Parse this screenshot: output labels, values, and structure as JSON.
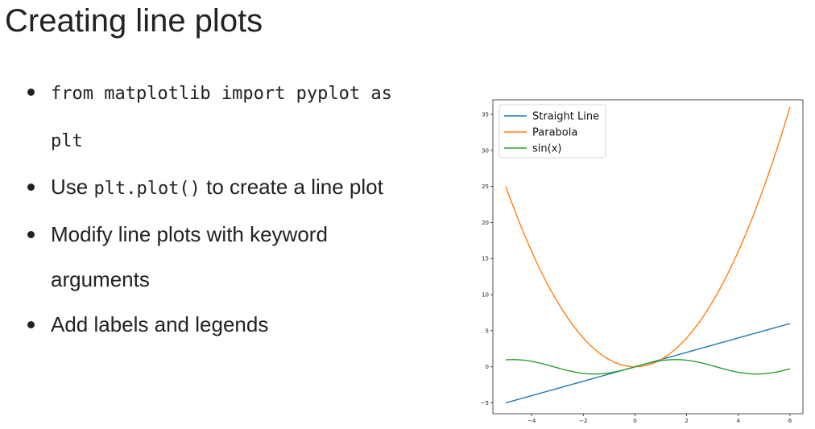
{
  "slide": {
    "title": "Creating line plots",
    "bullets": [
      {
        "code_text": "from matplotlib import pyplot as plt",
        "text": ""
      },
      {
        "prefix": "Use ",
        "code_text": "plt.plot()",
        "suffix": " to create a line plot"
      },
      {
        "text": "Modify line plots with keyword arguments"
      },
      {
        "text": "Add labels and legends"
      }
    ]
  },
  "chart_data": {
    "type": "line",
    "title": "",
    "xlabel": "",
    "ylabel": "",
    "xlim": [
      -5.5,
      6.5
    ],
    "ylim": [
      -6.5,
      37
    ],
    "x_ticks": [
      -4,
      -2,
      0,
      2,
      4,
      6
    ],
    "y_ticks": [
      -5,
      0,
      5,
      10,
      15,
      20,
      25,
      30,
      35
    ],
    "x_tick_labels": [
      "−4",
      "−2",
      "0",
      "2",
      "4",
      "6"
    ],
    "y_tick_labels": [
      "−5",
      "0",
      "5",
      "10",
      "15",
      "20",
      "25",
      "30",
      "35"
    ],
    "grid": false,
    "legend_position": "top-left",
    "x": [
      -5,
      -4.5,
      -4,
      -3.5,
      -3,
      -2.5,
      -2,
      -1.5,
      -1,
      -0.5,
      0,
      0.5,
      1,
      1.5,
      2,
      2.5,
      3,
      3.5,
      4,
      4.5,
      5,
      5.5,
      6,
      6
    ],
    "series": [
      {
        "name": "Straight Line",
        "color": "#1f77b4",
        "values": [
          -5,
          -4.5,
          -4,
          -3.5,
          -3,
          -2.5,
          -2,
          -1.5,
          -1,
          -0.5,
          0,
          0.5,
          1,
          1.5,
          2,
          2.5,
          3,
          3.5,
          4,
          4.5,
          5,
          5.5,
          6,
          6
        ]
      },
      {
        "name": "Parabola",
        "color": "#ff7f0e",
        "values": [
          25,
          20.25,
          16,
          12.25,
          9,
          6.25,
          4,
          2.25,
          1,
          0.25,
          0,
          0.25,
          1,
          2.25,
          4,
          6.25,
          9,
          12.25,
          16,
          20.25,
          25,
          30.25,
          36,
          36
        ]
      },
      {
        "name": "sin(x)",
        "color": "#2ca02c",
        "values": [
          0.96,
          0.98,
          0.76,
          0.35,
          -0.14,
          -0.6,
          -0.91,
          -1.0,
          -0.84,
          -0.48,
          0,
          0.48,
          0.84,
          1.0,
          0.91,
          0.6,
          0.14,
          -0.35,
          -0.76,
          -0.98,
          -0.96,
          -0.71,
          -0.28,
          -0.28
        ]
      }
    ]
  }
}
